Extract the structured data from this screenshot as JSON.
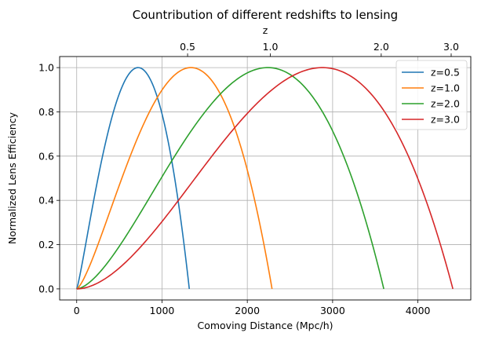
{
  "chart_data": {
    "type": "line",
    "title": "Countribution of different redshifts to lensing",
    "xlabel": "Comoving Distance (Mpc/h)",
    "ylabel": "Normalized Lens Efficiency",
    "top_xlabel": "z",
    "xlim": [
      -200,
      4620
    ],
    "ylim": [
      -0.05,
      1.05
    ],
    "x_ticks": [
      0,
      1000,
      2000,
      3000,
      4000
    ],
    "x_tick_labels": [
      "0",
      "1000",
      "2000",
      "3000",
      "4000"
    ],
    "y_ticks": [
      0.0,
      0.2,
      0.4,
      0.6,
      0.8,
      1.0
    ],
    "y_tick_labels": [
      "0.0",
      "0.2",
      "0.4",
      "0.6",
      "0.8",
      "1.0"
    ],
    "top_ticks": [
      {
        "label": "0.5",
        "chi": 1300
      },
      {
        "label": "1.0",
        "chi": 2270
      },
      {
        "label": "2.0",
        "chi": 3570
      },
      {
        "label": "3.0",
        "chi": 4390
      }
    ],
    "grid": true,
    "legend_position": "top-right",
    "series": [
      {
        "name": "z=0.5",
        "color": "#1f77b4",
        "chi_source": 1320,
        "chi_peak": 720
      },
      {
        "name": "z=1.0",
        "color": "#ff7f0e",
        "chi_source": 2290,
        "chi_peak": 1340
      },
      {
        "name": "z=2.0",
        "color": "#2ca02c",
        "chi_source": 3600,
        "chi_peak": 2240
      },
      {
        "name": "z=3.0",
        "color": "#d62728",
        "chi_source": 4410,
        "chi_peak": 2880
      }
    ]
  }
}
